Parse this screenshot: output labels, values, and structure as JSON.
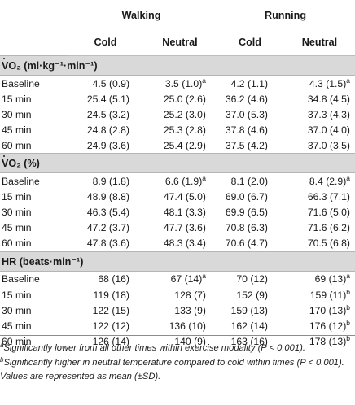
{
  "groups": {
    "walking": "Walking",
    "running": "Running"
  },
  "subheads": {
    "w_cold": "Cold",
    "w_neutral": "Neutral",
    "r_cold": "Cold",
    "r_neutral": "Neutral"
  },
  "sections": [
    {
      "title": "VO₂ (ml·kg⁻¹·min⁻¹)",
      "dot": true,
      "rows": [
        {
          "label": "Baseline",
          "v": [
            "4.5 (0.9)",
            "3.5 (1.0)",
            "4.2 (1.1)",
            "4.3 (1.5)"
          ],
          "sup": [
            "",
            "a",
            "",
            "a"
          ]
        },
        {
          "label": "15 min",
          "v": [
            "25.4 (5.1)",
            "25.0 (2.6)",
            "36.2 (4.6)",
            "34.8 (4.5)"
          ],
          "sup": [
            "",
            "",
            "",
            ""
          ]
        },
        {
          "label": "30 min",
          "v": [
            "24.5 (3.2)",
            "25.2 (3.0)",
            "37.0 (5.3)",
            "37.3 (4.3)"
          ],
          "sup": [
            "",
            "",
            "",
            ""
          ]
        },
        {
          "label": "45 min",
          "v": [
            "24.8 (2.8)",
            "25.3 (2.8)",
            "37.8 (4.6)",
            "37.0 (4.0)"
          ],
          "sup": [
            "",
            "",
            "",
            ""
          ]
        },
        {
          "label": "60 min",
          "v": [
            "24.9 (3.6)",
            "25.4 (2.9)",
            "37.5 (4.2)",
            "37.0 (3.5)"
          ],
          "sup": [
            "",
            "",
            "",
            ""
          ]
        }
      ]
    },
    {
      "title": "VO₂ (%)",
      "dot": true,
      "rows": [
        {
          "label": "Baseline",
          "v": [
            "8.9 (1.8)",
            "6.6 (1.9)",
            "8.1 (2.0)",
            "8.4 (2.9)"
          ],
          "sup": [
            "",
            "a",
            "",
            "a"
          ]
        },
        {
          "label": "15 min",
          "v": [
            "48.9 (8.8)",
            "47.4 (5.0)",
            "69.0 (6.7)",
            "66.3 (7.1)"
          ],
          "sup": [
            "",
            "",
            "",
            ""
          ]
        },
        {
          "label": "30 min",
          "v": [
            "46.3 (5.4)",
            "48.1 (3.3)",
            "69.9 (6.5)",
            "71.6 (5.0)"
          ],
          "sup": [
            "",
            "",
            "",
            ""
          ]
        },
        {
          "label": "45 min",
          "v": [
            "47.2 (3.7)",
            "47.7 (3.6)",
            "70.8 (6.3)",
            "71.6 (6.2)"
          ],
          "sup": [
            "",
            "",
            "",
            ""
          ]
        },
        {
          "label": "60 min",
          "v": [
            "47.8 (3.6)",
            "48.3 (3.4)",
            "70.6 (4.7)",
            "70.5 (6.8)"
          ],
          "sup": [
            "",
            "",
            "",
            ""
          ]
        }
      ]
    },
    {
      "title": "HR (beats·min⁻¹)",
      "dot": false,
      "rows": [
        {
          "label": "Baseline",
          "v": [
            "68 (16)",
            "67 (14)",
            "70 (12)",
            "69 (13)"
          ],
          "sup": [
            "",
            "a",
            "",
            "a"
          ]
        },
        {
          "label": "15 min",
          "v": [
            "119 (18)",
            "128 (7)",
            "152 (9)",
            "159 (11)"
          ],
          "sup": [
            "",
            "",
            "",
            "b"
          ]
        },
        {
          "label": "30 min",
          "v": [
            "122 (15)",
            "133 (9)",
            "159 (13)",
            "170 (13)"
          ],
          "sup": [
            "",
            "",
            "",
            "b"
          ]
        },
        {
          "label": "45 min",
          "v": [
            "122 (12)",
            "136 (10)",
            "162 (14)",
            "176 (12)"
          ],
          "sup": [
            "",
            "",
            "",
            "b"
          ]
        },
        {
          "label": "60 min",
          "v": [
            "126 (14)",
            "140 (9)",
            "163 (16)",
            "178 (13)"
          ],
          "sup": [
            "",
            "",
            "",
            "b"
          ]
        }
      ]
    }
  ],
  "footnotes": {
    "a_mark": "a",
    "a": "Significantly lower from all other times within exercise modality (P < 0.001).",
    "b_mark": "b",
    "b": "Significantly higher in neutral temperature compared to cold within times (P < 0.001).",
    "values": "Values are represented as mean (±SD)."
  }
}
